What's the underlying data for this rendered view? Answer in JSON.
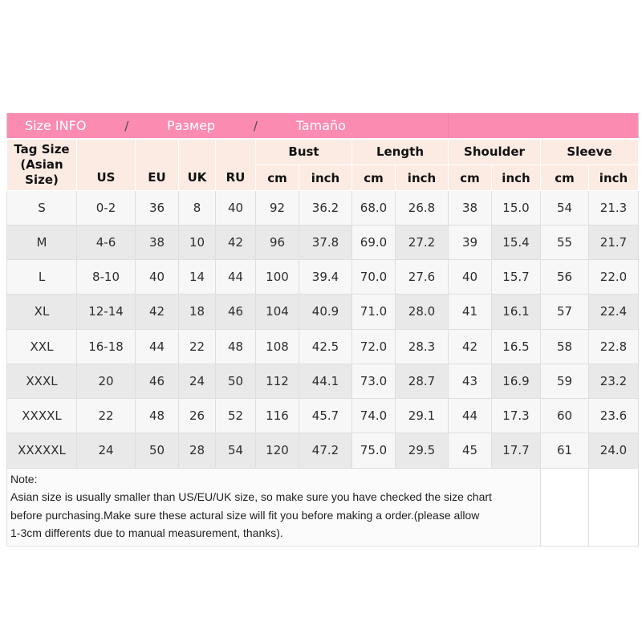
{
  "title_bar": {
    "parts": [
      "Size INFO",
      "/",
      "Размер",
      "/",
      "Tamaño"
    ]
  },
  "chart_data": {
    "type": "table",
    "title": "Size INFO / Размер / Tamaño",
    "headers": {
      "tag_size": "Tag Size\n(Asian Size)",
      "us": "US",
      "eu": "EU",
      "uk": "UK",
      "ru": "RU",
      "bust": "Bust",
      "length": "Length",
      "shoulder": "Shoulder",
      "sleeve": "Sleeve",
      "cm": "cm",
      "inch": "inch"
    },
    "columns": [
      "Tag Size (Asian Size)",
      "US",
      "EU",
      "UK",
      "RU",
      "Bust cm",
      "Bust inch",
      "Length cm",
      "Length inch",
      "Shoulder cm",
      "Shoulder inch",
      "Sleeve cm",
      "Sleeve inch"
    ],
    "rows": [
      [
        "S",
        "0-2",
        "36",
        "8",
        "40",
        "92",
        "36.2",
        "68.0",
        "26.8",
        "38",
        "15.0",
        "54",
        "21.3"
      ],
      [
        "M",
        "4-6",
        "38",
        "10",
        "42",
        "96",
        "37.8",
        "69.0",
        "27.2",
        "39",
        "15.4",
        "55",
        "21.7"
      ],
      [
        "L",
        "8-10",
        "40",
        "14",
        "44",
        "100",
        "39.4",
        "70.0",
        "27.6",
        "40",
        "15.7",
        "56",
        "22.0"
      ],
      [
        "XL",
        "12-14",
        "42",
        "18",
        "46",
        "104",
        "40.9",
        "71.0",
        "28.0",
        "41",
        "16.1",
        "57",
        "22.4"
      ],
      [
        "XXL",
        "16-18",
        "44",
        "22",
        "48",
        "108",
        "42.5",
        "72.0",
        "28.3",
        "42",
        "16.5",
        "58",
        "22.8"
      ],
      [
        "XXXL",
        "20",
        "46",
        "24",
        "50",
        "112",
        "44.1",
        "73.0",
        "28.7",
        "43",
        "16.9",
        "59",
        "23.2"
      ],
      [
        "XXXXL",
        "22",
        "48",
        "26",
        "52",
        "116",
        "45.7",
        "74.0",
        "29.1",
        "44",
        "17.3",
        "60",
        "23.6"
      ],
      [
        "XXXXXL",
        "24",
        "50",
        "28",
        "54",
        "120",
        "47.2",
        "75.0",
        "29.5",
        "45",
        "17.7",
        "61",
        "24.0"
      ]
    ]
  },
  "note": {
    "text": "Note:\nAsian size is usually smaller than US/EU/UK size, so make sure you have checked the size chart\nbefore purchasing.Make sure these actural size will fit you before making a order.(please allow\n1-3cm differents due to manual measurement, thanks)."
  },
  "colors": {
    "title_background": "#fb8bb1",
    "header_background": "#fcebe3",
    "row_alt_background": "#e9e9e9",
    "row_background": "#f7f7f7",
    "title_text": "#ffffff"
  }
}
